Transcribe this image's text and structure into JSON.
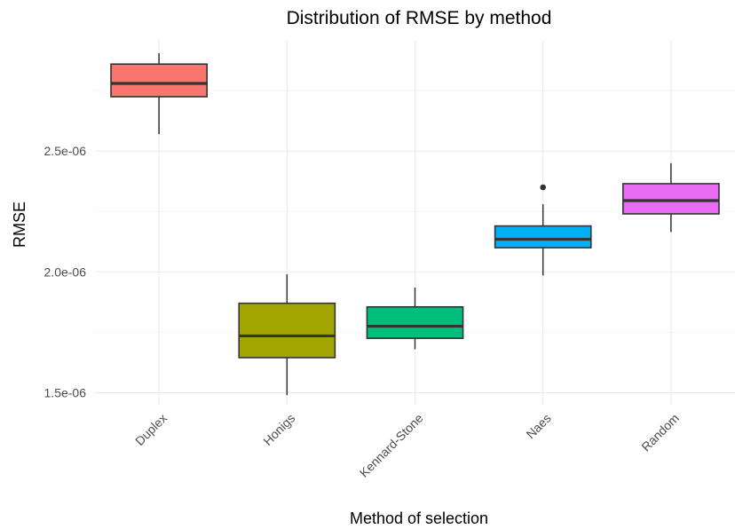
{
  "chart_data": {
    "type": "box",
    "title": "Distribution of RMSE by method",
    "xlabel": "Method of selection",
    "ylabel": "RMSE",
    "ylim": [
      1.45e-06,
      2.96e-06
    ],
    "yticks": [
      {
        "value": 1.5e-06,
        "label": "1.5e-06"
      },
      {
        "value": 2e-06,
        "label": "2.0e-06"
      },
      {
        "value": 2.5e-06,
        "label": "2.5e-06"
      }
    ],
    "grid": true,
    "legend": "none",
    "categories": [
      "Duplex",
      "Honigs",
      "Kennard-Stone",
      "Naes",
      "Random"
    ],
    "boxes": [
      {
        "category": "Duplex",
        "color": "#F8766D",
        "whisker_low": 2.57e-06,
        "q1": 2.725e-06,
        "median": 2.78e-06,
        "q3": 2.86e-06,
        "whisker_high": 2.905e-06,
        "outliers": []
      },
      {
        "category": "Honigs",
        "color": "#A3A500",
        "whisker_low": 1.49e-06,
        "q1": 1.645e-06,
        "median": 1.735e-06,
        "q3": 1.87e-06,
        "whisker_high": 1.99e-06,
        "outliers": []
      },
      {
        "category": "Kennard-Stone",
        "color": "#00BF7D",
        "whisker_low": 1.68e-06,
        "q1": 1.725e-06,
        "median": 1.775e-06,
        "q3": 1.855e-06,
        "whisker_high": 1.935e-06,
        "outliers": []
      },
      {
        "category": "Naes",
        "color": "#00B0F6",
        "whisker_low": 1.985e-06,
        "q1": 2.1e-06,
        "median": 2.135e-06,
        "q3": 2.19e-06,
        "whisker_high": 2.28e-06,
        "outliers": [
          2.35e-06
        ]
      },
      {
        "category": "Random",
        "color": "#E76BF3",
        "whisker_low": 2.165e-06,
        "q1": 2.24e-06,
        "median": 2.295e-06,
        "q3": 2.365e-06,
        "whisker_high": 2.45e-06,
        "outliers": []
      }
    ]
  }
}
